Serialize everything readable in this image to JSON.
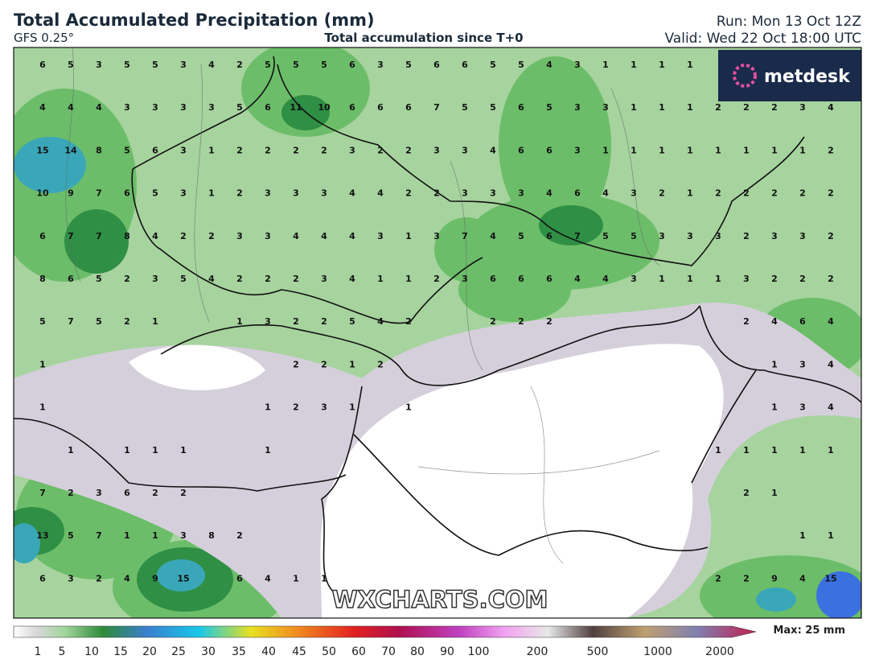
{
  "header": {
    "title": "Total Accumulated Precipitation (mm)",
    "model": "GFS 0.25°",
    "subtitle": "Total accumulation since T+0",
    "run": "Run: Mon 13 Oct 12Z",
    "valid": "Valid: Wed 22 Oct 18:00 UTC",
    "logo": "metdesk"
  },
  "map": {
    "watermark": "WXCHARTS.COM",
    "grid_values": [
      [
        6,
        5,
        3,
        5,
        5,
        3,
        4,
        2,
        5,
        5,
        5,
        6,
        3,
        5,
        6,
        6,
        5,
        5,
        4,
        3,
        1,
        1,
        1,
        1,
        null,
        null,
        null,
        null,
        null
      ],
      [
        4,
        4,
        4,
        3,
        3,
        3,
        3,
        5,
        6,
        11,
        10,
        6,
        6,
        6,
        7,
        5,
        5,
        6,
        5,
        3,
        3,
        1,
        1,
        1,
        2,
        2,
        2,
        3,
        4
      ],
      [
        15,
        14,
        8,
        5,
        6,
        3,
        1,
        2,
        2,
        2,
        2,
        3,
        2,
        2,
        3,
        3,
        4,
        6,
        6,
        3,
        1,
        1,
        1,
        1,
        1,
        1,
        1,
        1,
        2
      ],
      [
        10,
        9,
        7,
        6,
        5,
        3,
        1,
        2,
        3,
        3,
        3,
        4,
        4,
        2,
        2,
        3,
        3,
        3,
        4,
        6,
        4,
        3,
        2,
        1,
        2,
        2,
        2,
        2,
        2
      ],
      [
        6,
        7,
        7,
        8,
        4,
        2,
        2,
        3,
        3,
        4,
        4,
        4,
        3,
        1,
        3,
        7,
        4,
        5,
        6,
        7,
        5,
        5,
        3,
        3,
        3,
        2,
        3,
        3,
        2
      ],
      [
        8,
        6,
        5,
        2,
        3,
        5,
        4,
        2,
        2,
        2,
        3,
        4,
        1,
        1,
        2,
        3,
        6,
        6,
        6,
        4,
        4,
        3,
        1,
        1,
        1,
        3,
        2,
        2,
        2
      ],
      [
        5,
        7,
        5,
        2,
        1,
        null,
        null,
        1,
        3,
        2,
        2,
        5,
        4,
        2,
        null,
        null,
        2,
        2,
        2,
        null,
        null,
        null,
        null,
        null,
        null,
        2,
        4,
        6,
        4
      ],
      [
        1,
        null,
        null,
        null,
        null,
        null,
        null,
        null,
        null,
        2,
        2,
        1,
        2,
        null,
        null,
        null,
        null,
        null,
        null,
        null,
        null,
        null,
        null,
        null,
        null,
        null,
        1,
        3,
        4
      ],
      [
        1,
        null,
        null,
        null,
        null,
        null,
        null,
        null,
        1,
        2,
        3,
        1,
        null,
        1,
        null,
        null,
        null,
        null,
        null,
        null,
        null,
        null,
        null,
        null,
        null,
        null,
        1,
        3,
        4
      ],
      [
        null,
        1,
        null,
        1,
        1,
        1,
        null,
        null,
        1,
        null,
        null,
        null,
        null,
        null,
        null,
        null,
        null,
        null,
        null,
        null,
        null,
        null,
        null,
        null,
        1,
        1,
        1,
        1,
        1
      ],
      [
        7,
        2,
        3,
        6,
        2,
        2,
        null,
        null,
        null,
        null,
        null,
        null,
        null,
        null,
        null,
        null,
        null,
        null,
        null,
        null,
        null,
        null,
        null,
        null,
        null,
        2,
        1,
        null,
        null
      ],
      [
        13,
        5,
        7,
        1,
        1,
        3,
        8,
        2,
        null,
        null,
        null,
        null,
        null,
        null,
        null,
        null,
        null,
        null,
        null,
        null,
        null,
        null,
        null,
        null,
        null,
        null,
        null,
        1,
        1
      ],
      [
        6,
        3,
        2,
        4,
        9,
        15,
        null,
        6,
        4,
        1,
        1,
        null,
        null,
        null,
        null,
        null,
        null,
        null,
        null,
        null,
        null,
        null,
        null,
        null,
        2,
        2,
        9,
        4,
        15
      ]
    ]
  },
  "colorbar": {
    "ticks": [
      1,
      5,
      10,
      15,
      20,
      25,
      30,
      35,
      40,
      45,
      50,
      60,
      70,
      80,
      90,
      100,
      200,
      500,
      1000,
      2000
    ],
    "max_label": "Max: 25 mm"
  }
}
